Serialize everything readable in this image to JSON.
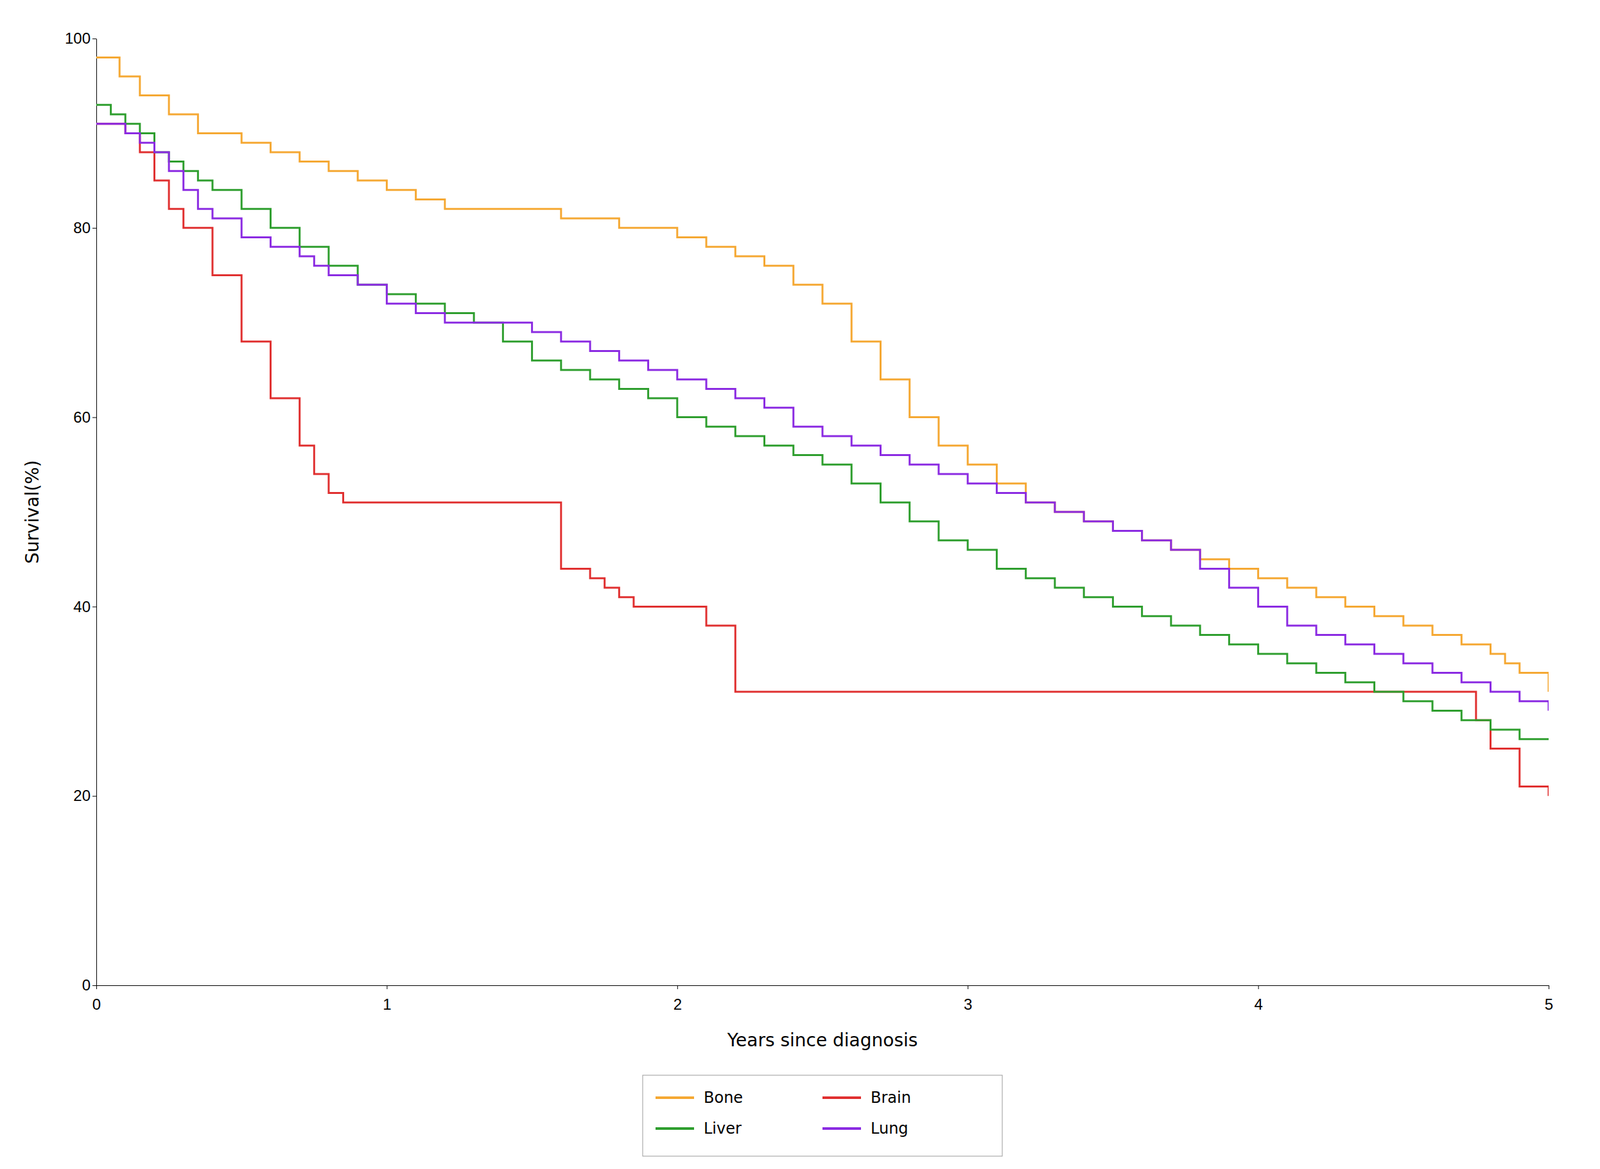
{
  "chart_data": {
    "type": "step",
    "xlabel": "Years since diagnosis",
    "ylabel": "Survival(%)",
    "xlim": [
      0,
      5
    ],
    "ylim": [
      0,
      100
    ],
    "xticks": [
      0,
      1,
      2,
      3,
      4,
      5
    ],
    "yticks": [
      0,
      20,
      40,
      60,
      80,
      100
    ],
    "grid": false,
    "legend": "bottom",
    "series": [
      {
        "name": "Bone",
        "color": "#f5a833",
        "x": [
          0.0,
          0.08,
          0.15,
          0.25,
          0.35,
          0.5,
          0.6,
          0.7,
          0.8,
          0.9,
          1.0,
          1.1,
          1.2,
          1.4,
          1.6,
          1.7,
          1.8,
          2.0,
          2.1,
          2.2,
          2.3,
          2.4,
          2.5,
          2.6,
          2.7,
          2.8,
          2.9,
          3.0,
          3.1,
          3.2,
          3.3,
          3.4,
          3.5,
          3.6,
          3.7,
          3.8,
          3.9,
          4.0,
          4.1,
          4.2,
          4.3,
          4.4,
          4.5,
          4.6,
          4.7,
          4.8,
          4.85,
          4.9,
          5.0
        ],
        "values": [
          98,
          96,
          94,
          92,
          90,
          89,
          88,
          87,
          86,
          85,
          84,
          83,
          82,
          82,
          81,
          81,
          80,
          79,
          78,
          77,
          76,
          74,
          72,
          68,
          64,
          60,
          57,
          55,
          53,
          51,
          50,
          49,
          48,
          47,
          46,
          45,
          44,
          43,
          42,
          41,
          40,
          39,
          38,
          37,
          36,
          35,
          34,
          33,
          31
        ]
      },
      {
        "name": "Brain",
        "color": "#e03030",
        "x": [
          0.0,
          0.05,
          0.1,
          0.15,
          0.2,
          0.25,
          0.3,
          0.4,
          0.5,
          0.6,
          0.7,
          0.75,
          0.8,
          0.85,
          0.9,
          1.0,
          1.5,
          1.6,
          1.7,
          1.75,
          1.8,
          1.85,
          1.9,
          2.0,
          2.1,
          2.2,
          2.5,
          3.0,
          3.5,
          4.0,
          4.5,
          4.7,
          4.75,
          4.8,
          4.9,
          5.0
        ],
        "values": [
          91,
          91,
          90,
          88,
          85,
          82,
          80,
          75,
          68,
          62,
          57,
          54,
          52,
          51,
          51,
          51,
          51,
          44,
          43,
          42,
          41,
          40,
          40,
          40,
          38,
          31,
          31,
          31,
          31,
          31,
          31,
          31,
          28,
          25,
          21,
          20
        ]
      },
      {
        "name": "Liver",
        "color": "#2e9e2e",
        "x": [
          0.0,
          0.05,
          0.1,
          0.15,
          0.2,
          0.25,
          0.3,
          0.35,
          0.4,
          0.5,
          0.6,
          0.7,
          0.8,
          0.9,
          1.0,
          1.1,
          1.2,
          1.3,
          1.4,
          1.5,
          1.6,
          1.7,
          1.8,
          1.9,
          2.0,
          2.1,
          2.2,
          2.3,
          2.4,
          2.5,
          2.6,
          2.7,
          2.8,
          2.9,
          3.0,
          3.1,
          3.2,
          3.3,
          3.4,
          3.5,
          3.6,
          3.7,
          3.8,
          3.9,
          4.0,
          4.1,
          4.2,
          4.3,
          4.4,
          4.5,
          4.6,
          4.7,
          4.8,
          4.9,
          5.0
        ],
        "values": [
          93,
          92,
          91,
          90,
          88,
          87,
          86,
          85,
          84,
          82,
          80,
          78,
          76,
          74,
          73,
          72,
          71,
          70,
          68,
          66,
          65,
          64,
          63,
          62,
          60,
          59,
          58,
          57,
          56,
          55,
          53,
          51,
          49,
          47,
          46,
          44,
          43,
          42,
          41,
          40,
          39,
          38,
          37,
          36,
          35,
          34,
          33,
          32,
          31,
          30,
          29,
          28,
          27,
          26,
          26
        ]
      },
      {
        "name": "Lung",
        "color": "#8b2be2",
        "x": [
          0.0,
          0.05,
          0.1,
          0.15,
          0.2,
          0.25,
          0.3,
          0.35,
          0.4,
          0.5,
          0.6,
          0.7,
          0.75,
          0.8,
          0.9,
          1.0,
          1.1,
          1.2,
          1.3,
          1.4,
          1.5,
          1.6,
          1.7,
          1.8,
          1.9,
          2.0,
          2.1,
          2.2,
          2.3,
          2.4,
          2.5,
          2.6,
          2.7,
          2.8,
          2.9,
          3.0,
          3.1,
          3.2,
          3.3,
          3.4,
          3.5,
          3.6,
          3.7,
          3.8,
          3.9,
          4.0,
          4.1,
          4.2,
          4.3,
          4.4,
          4.5,
          4.6,
          4.7,
          4.8,
          4.9,
          5.0
        ],
        "values": [
          91,
          91,
          90,
          89,
          88,
          86,
          84,
          82,
          81,
          79,
          78,
          77,
          76,
          75,
          74,
          72,
          71,
          70,
          70,
          70,
          69,
          68,
          67,
          66,
          65,
          64,
          63,
          62,
          61,
          59,
          58,
          57,
          56,
          55,
          54,
          53,
          52,
          51,
          50,
          49,
          48,
          47,
          46,
          44,
          42,
          40,
          38,
          37,
          36,
          35,
          34,
          33,
          32,
          31,
          30,
          29
        ]
      }
    ]
  }
}
